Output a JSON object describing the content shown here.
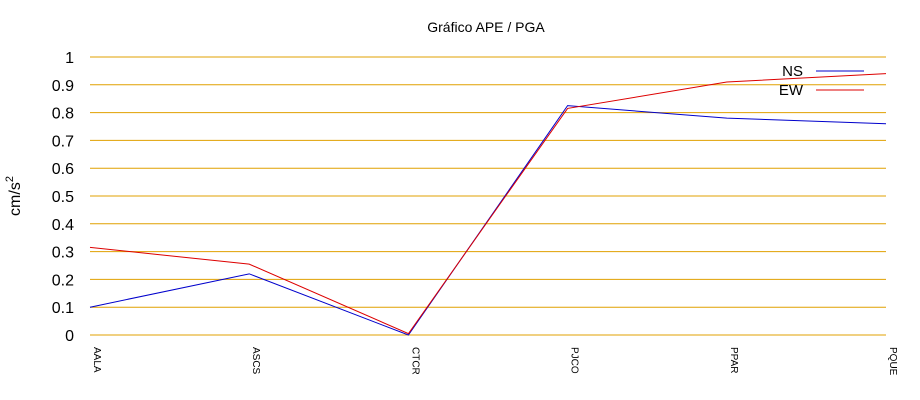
{
  "chart_data": {
    "type": "line",
    "title": "Gráfico  APE / PGA",
    "xlabel": "",
    "ylabel_base": "cm/s",
    "ylabel_exp": "2",
    "categories": [
      "AALA",
      "ASCS",
      "CTCR",
      "PJCO",
      "PPAR",
      "PQUE"
    ],
    "ylim": [
      0,
      1
    ],
    "yticks": [
      "0",
      "0.1",
      "0.2",
      "0.3",
      "0.4",
      "0.5",
      "0.6",
      "0.7",
      "0.8",
      "0.9",
      "1"
    ],
    "grid": true,
    "legend_position": "top-right",
    "series": [
      {
        "name": "NS",
        "color": "#0000cc",
        "values": [
          0.1,
          0.22,
          0.0,
          0.825,
          0.78,
          0.76
        ]
      },
      {
        "name": "EW",
        "color": "#dd0000",
        "values": [
          0.315,
          0.255,
          0.005,
          0.815,
          0.91,
          0.94
        ]
      }
    ],
    "grid_color": "#e0a000"
  }
}
